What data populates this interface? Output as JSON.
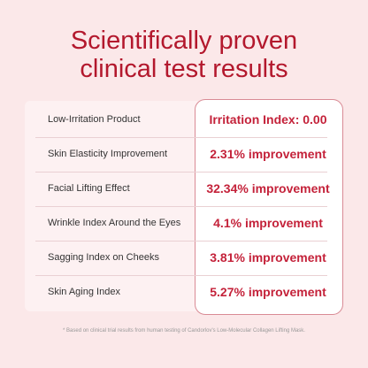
{
  "header": {
    "title_lines": [
      "Scientifically proven",
      "clinical test results"
    ]
  },
  "table": {
    "rows": [
      [
        "Low-Irritation Product",
        "Irritation Index: 0.00"
      ],
      [
        "Skin Elasticity Improvement",
        "2.31% improvement"
      ],
      [
        "Facial Lifting Effect",
        "32.34% improvement"
      ],
      [
        "Wrinkle Index Around the Eyes",
        "4.1% improvement"
      ],
      [
        "Sagging Index on Cheeks",
        "3.81% improvement"
      ],
      [
        "Skin Aging Index",
        "5.27% improvement"
      ]
    ]
  },
  "footnote": "* Based on clinical trial results from human testing of Candorlov's Low-Molecular Collagen Lifting Mask."
}
